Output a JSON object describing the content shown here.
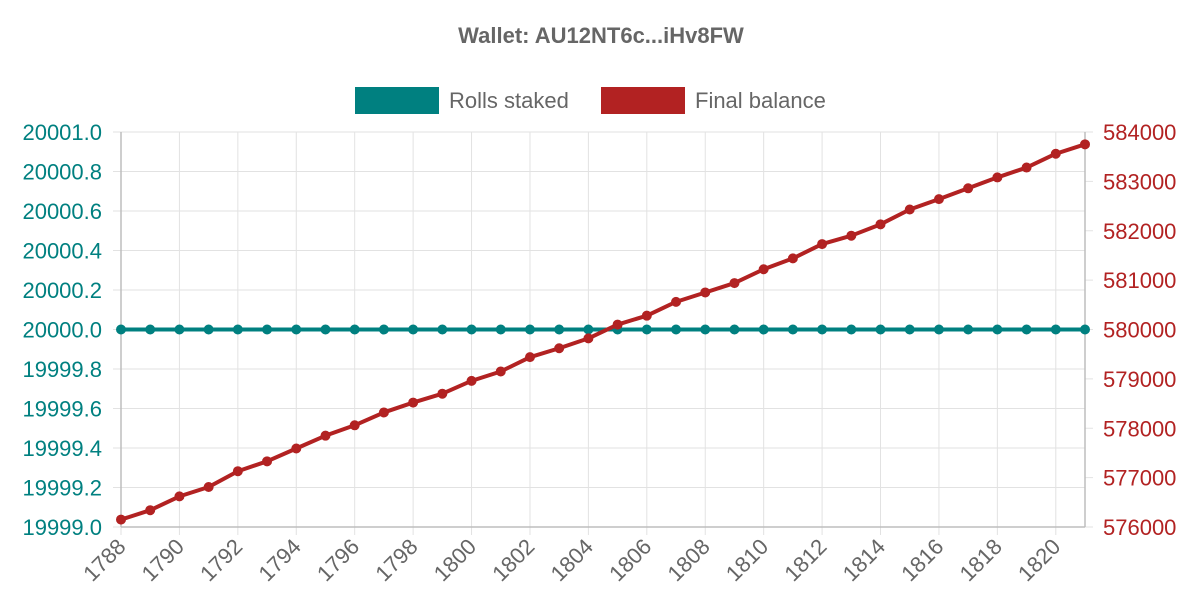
{
  "chart_data": {
    "type": "line",
    "title": "Wallet: AU12NT6c...iHv8FW",
    "legend_position": "top",
    "grid": true,
    "x": [
      1788,
      1789,
      1790,
      1791,
      1792,
      1793,
      1794,
      1795,
      1796,
      1797,
      1798,
      1799,
      1800,
      1801,
      1802,
      1803,
      1804,
      1805,
      1806,
      1807,
      1808,
      1809,
      1810,
      1811,
      1812,
      1813,
      1814,
      1815,
      1816,
      1817,
      1818,
      1819,
      1820,
      1821
    ],
    "x_tick_labels": [
      "1788",
      "1790",
      "1792",
      "1794",
      "1796",
      "1798",
      "1800",
      "1802",
      "1804",
      "1806",
      "1808",
      "1810",
      "1812",
      "1814",
      "1816",
      "1818",
      "1820"
    ],
    "y_left": {
      "range": [
        19999.0,
        20001.0
      ],
      "tick_labels": [
        "19999.0",
        "19999.2",
        "19999.4",
        "19999.6",
        "19999.8",
        "20000.0",
        "20000.2",
        "20000.4",
        "20000.6",
        "20000.8",
        "20001.0"
      ]
    },
    "y_right": {
      "range": [
        576000,
        584000
      ],
      "tick_labels": [
        "576000",
        "577000",
        "578000",
        "579000",
        "580000",
        "581000",
        "582000",
        "583000",
        "584000"
      ]
    },
    "series": [
      {
        "name": "Rolls staked",
        "axis": "left",
        "color": "#008080",
        "values": [
          20000,
          20000,
          20000,
          20000,
          20000,
          20000,
          20000,
          20000,
          20000,
          20000,
          20000,
          20000,
          20000,
          20000,
          20000,
          20000,
          20000,
          20000,
          20000,
          20000,
          20000,
          20000,
          20000,
          20000,
          20000,
          20000,
          20000,
          20000,
          20000,
          20000,
          20000,
          20000,
          20000,
          20000
        ]
      },
      {
        "name": "Final balance",
        "axis": "right",
        "color": "#b22222",
        "values": [
          576150,
          576340,
          576620,
          576810,
          577130,
          577330,
          577590,
          577850,
          578060,
          578320,
          578520,
          578700,
          578960,
          579150,
          579440,
          579620,
          579820,
          580100,
          580280,
          580560,
          580750,
          580940,
          581220,
          581440,
          581730,
          581900,
          582130,
          582430,
          582640,
          582860,
          583080,
          583280,
          583560,
          583750
        ]
      }
    ]
  }
}
